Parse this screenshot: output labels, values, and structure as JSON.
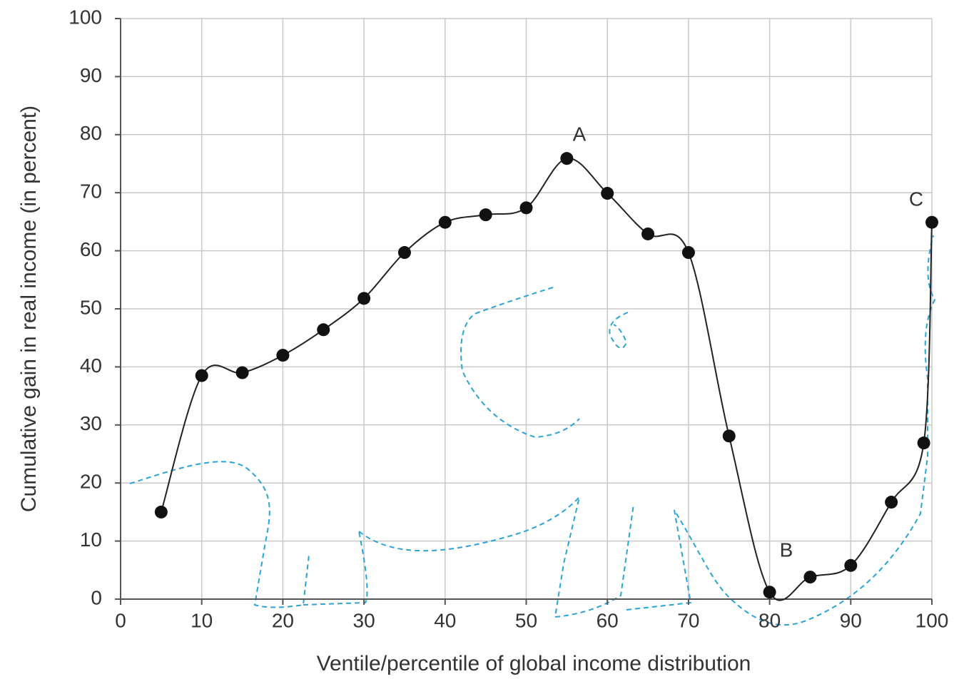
{
  "chart_data": {
    "type": "line",
    "x_label": "Ventile/percentile of global income distribution",
    "y_label": "Cumulative gain in real income (in percent)",
    "x": [
      5,
      10,
      15,
      20,
      25,
      30,
      35,
      40,
      45,
      50,
      55,
      60,
      65,
      70,
      75,
      80,
      85,
      90,
      95,
      99,
      100
    ],
    "series": [
      {
        "color": "#222222",
        "values": [
          15,
          38.5,
          39,
          42,
          46.4,
          51.8,
          59.7,
          64.9,
          66.2,
          67.4,
          75.9,
          69.9,
          62.9,
          59.7,
          28.1,
          1.2,
          3.8,
          5.8,
          16.7,
          26.9,
          64.9
        ]
      }
    ],
    "annotations": [
      "A",
      "B",
      "C"
    ],
    "xlim": [
      0,
      100
    ],
    "xticks": [
      0,
      10,
      20,
      30,
      40,
      50,
      60,
      70,
      80,
      90,
      100
    ],
    "ylim": [
      0,
      100
    ],
    "yticks": [
      0,
      10,
      20,
      30,
      40,
      50,
      60,
      70,
      80,
      90,
      100
    ],
    "grid": true
  }
}
